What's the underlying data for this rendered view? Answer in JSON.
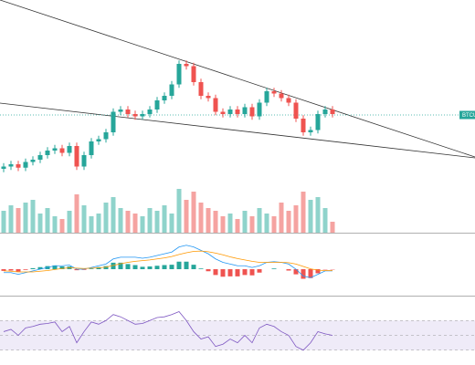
{
  "chart_data": [
    {
      "type": "candlestick",
      "xlim": [
        -0.5,
        64.5
      ],
      "ylim": [
        0,
        100
      ],
      "up_color": "#26a69a",
      "down_color": "#ef5350",
      "open": [
        26,
        27,
        28,
        26.5,
        29,
        30,
        32,
        34,
        35,
        33,
        36,
        27,
        32,
        38,
        39,
        42,
        51,
        52,
        50,
        49,
        50,
        52,
        56,
        58,
        63,
        72,
        71,
        64,
        58,
        57,
        51,
        50,
        52,
        50,
        53,
        49,
        55,
        60,
        59,
        57,
        55,
        48,
        42,
        43,
        50,
        52
      ],
      "high": [
        28.5,
        29.5,
        29.5,
        30.5,
        31.5,
        33.5,
        35.5,
        36.5,
        36.5,
        37.5,
        37.5,
        33.5,
        39.5,
        40.5,
        43.5,
        52.5,
        53.5,
        53.5,
        51.5,
        51.5,
        53.5,
        57.5,
        59.5,
        64.5,
        73.5,
        73.5,
        72.5,
        65.5,
        59.5,
        58.5,
        52.5,
        53.5,
        53.5,
        54.5,
        54.5,
        56.5,
        61.5,
        61.5,
        60.5,
        58.5,
        56.5,
        49.5,
        44.5,
        51.5,
        53.5,
        53.5
      ],
      "low": [
        24.5,
        25.5,
        25,
        25,
        27.5,
        28.5,
        30.5,
        32.5,
        31.5,
        31.5,
        25.5,
        25.5,
        30.5,
        36.5,
        37.5,
        40.5,
        49.5,
        48.5,
        47.5,
        47.5,
        48.5,
        50.5,
        54.5,
        56.5,
        61.5,
        69.5,
        62.5,
        56.5,
        55.5,
        49.5,
        48.5,
        48.5,
        48.5,
        48.5,
        47.5,
        47.5,
        53.5,
        57.5,
        55.5,
        53.5,
        46.5,
        40.5,
        40.5,
        41.5,
        48.5,
        48.5
      ],
      "close": [
        27,
        28,
        26.5,
        29,
        30,
        32,
        34,
        35,
        33,
        36,
        27,
        32,
        38,
        39,
        42,
        51,
        52,
        50,
        49,
        50,
        52,
        56,
        58,
        63,
        72,
        71,
        64,
        58,
        57,
        51,
        50,
        52,
        50,
        53,
        49,
        55,
        60,
        59,
        57,
        55,
        48,
        42,
        43,
        50,
        52,
        50
      ],
      "trendlines": [
        {
          "x": [
            -0.5,
            64.5
          ],
          "y": [
            100,
            31.2
          ],
          "color": "#333333"
        },
        {
          "x": [
            -0.5,
            64.5
          ],
          "y": [
            54.8,
            30.8
          ],
          "color": "#333333"
        }
      ],
      "price_line": {
        "value": 49.6,
        "label": "BTCU",
        "color": "#26a69a"
      }
    },
    {
      "type": "volume",
      "xlim": [
        -0.5,
        64.5
      ],
      "ylim": [
        0,
        100
      ],
      "up_color": "#8fd3cb",
      "down_color": "#f5a3a1",
      "values": [
        40,
        50,
        45,
        55,
        60,
        35,
        45,
        30,
        25,
        40,
        70,
        50,
        30,
        35,
        55,
        65,
        45,
        40,
        35,
        30,
        45,
        40,
        50,
        35,
        80,
        60,
        75,
        55,
        45,
        40,
        30,
        35,
        25,
        40,
        30,
        45,
        35,
        30,
        55,
        40,
        50,
        75,
        60,
        65,
        45,
        20
      ]
    },
    {
      "type": "macd",
      "xlim": [
        -0.5,
        64.5
      ],
      "ylim": [
        -8,
        8
      ],
      "series": [
        {
          "color": "#2196f3",
          "values": [
            -1,
            -1,
            -1.5,
            -1,
            -0.5,
            0,
            0.5,
            1,
            1,
            1.2,
            0,
            0,
            0.5,
            1,
            1.5,
            3,
            3.5,
            3.5,
            3.5,
            3.2,
            3.5,
            4,
            4.5,
            5,
            6.5,
            7,
            6.5,
            5.5,
            4.5,
            3,
            2,
            1.5,
            1,
            1,
            0.5,
            1,
            2,
            2.2,
            2,
            1.5,
            0,
            -2,
            -2.5,
            -1.5,
            -0.5,
            -0.5
          ]
        },
        {
          "color": "#ff9800",
          "values": [
            -0.5,
            -0.6,
            -0.8,
            -0.8,
            -0.8,
            -0.6,
            -0.4,
            -0.1,
            0.2,
            0.4,
            0.3,
            0.2,
            0.3,
            0.4,
            0.6,
            1.1,
            1.6,
            2,
            2.3,
            2.5,
            2.7,
            3,
            3.3,
            3.7,
            4.3,
            4.8,
            5.2,
            5.3,
            5.1,
            4.7,
            4.2,
            3.6,
            3.1,
            2.7,
            2.3,
            2,
            2,
            2,
            2,
            1.9,
            1.5,
            0.8,
            0.1,
            -0.3,
            -0.4,
            -0.4
          ]
        }
      ],
      "histogram": {
        "up_color": "#26a69a",
        "down_color": "#ef5350",
        "values": [
          -0.5,
          -0.4,
          -0.7,
          -0.2,
          0.3,
          0.6,
          0.9,
          1.1,
          0.8,
          0.8,
          -0.3,
          -0.2,
          0.2,
          0.6,
          0.9,
          1.9,
          1.9,
          1.5,
          1.2,
          0.7,
          0.8,
          1,
          1.2,
          1.3,
          2.2,
          2.2,
          1.3,
          0.2,
          -0.6,
          -1.7,
          -2.2,
          -2.1,
          -2.1,
          -1.7,
          -1.8,
          -1,
          0,
          0.2,
          0,
          -0.4,
          -1.5,
          -2.8,
          -2.6,
          -1.2,
          -0.1,
          -0.1
        ]
      }
    },
    {
      "type": "rsi",
      "xlim": [
        -0.5,
        64.5
      ],
      "ylim": [
        10,
        90
      ],
      "color": "#7e57c2",
      "band": [
        30,
        70
      ],
      "levels": [
        30,
        50,
        70
      ],
      "values": [
        55,
        58,
        50,
        60,
        62,
        65,
        66,
        68,
        55,
        62,
        40,
        55,
        68,
        65,
        70,
        78,
        75,
        70,
        65,
        66,
        70,
        74,
        75,
        78,
        82,
        70,
        55,
        45,
        48,
        35,
        38,
        45,
        40,
        50,
        40,
        60,
        65,
        62,
        55,
        50,
        35,
        30,
        40,
        55,
        52,
        50
      ]
    }
  ]
}
